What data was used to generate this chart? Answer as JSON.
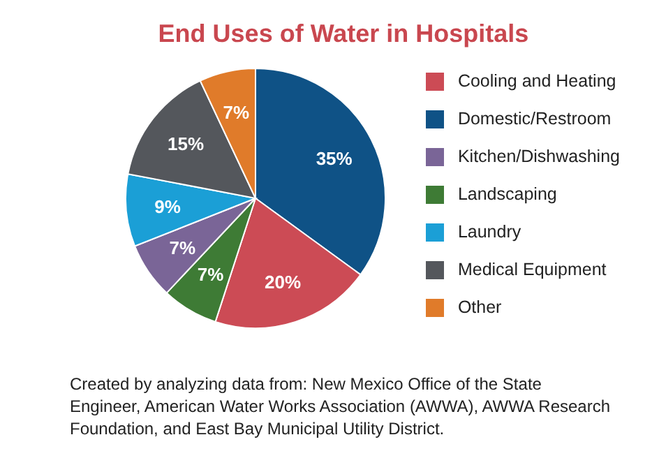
{
  "chart_data": {
    "type": "pie",
    "title": "End Uses of Water in Hospitals",
    "categories": [
      "Domestic/Restroom",
      "Cooling and Heating",
      "Landscaping",
      "Kitchen/Dishwashing",
      "Laundry",
      "Medical Equipment",
      "Other"
    ],
    "values": [
      35,
      20,
      7,
      7,
      9,
      15,
      7
    ],
    "colors": [
      "#0f5286",
      "#cc4b55",
      "#3e7b35",
      "#7a6597",
      "#1b9fd6",
      "#54575c",
      "#e07b2a"
    ],
    "value_labels": [
      "35%",
      "20%",
      "7%",
      "7%",
      "9%",
      "15%",
      "7%"
    ],
    "legend": "right",
    "annotations": [
      "Created by analyzing data from: New Mexico Office of the State Engineer, American Water Works Association (AWWA), AWWA Research Foundation, and East Bay Municipal Utility District."
    ]
  }
}
